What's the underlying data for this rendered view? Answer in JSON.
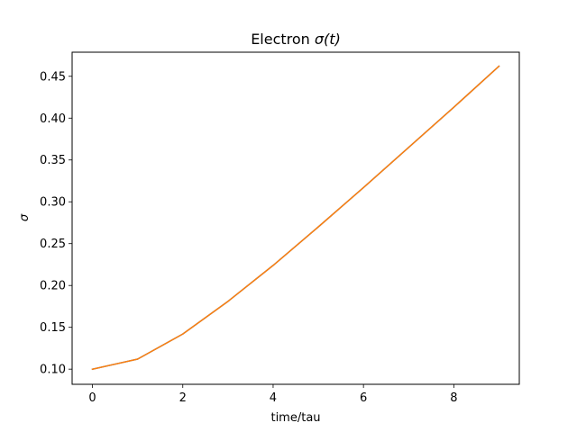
{
  "chart_data": {
    "type": "line",
    "title_prefix": "Electron ",
    "title_math": "σ(t)",
    "xlabel": "time/tau",
    "ylabel": "σ",
    "xlim": [
      -0.45,
      9.45
    ],
    "ylim": [
      0.0819,
      0.4788
    ],
    "xticks": [
      0,
      2,
      4,
      6,
      8
    ],
    "yticks": [
      0.1,
      0.15,
      0.2,
      0.25,
      0.3,
      0.35,
      0.4,
      0.45
    ],
    "xtick_labels": [
      "0",
      "2",
      "4",
      "6",
      "8"
    ],
    "ytick_labels": [
      "0.10",
      "0.15",
      "0.20",
      "0.25",
      "0.30",
      "0.35",
      "0.40",
      "0.45"
    ],
    "grid": false,
    "series": [
      {
        "color": "#1f77b4",
        "x": [
          0,
          1,
          2,
          3,
          4,
          5,
          6,
          7,
          8,
          9
        ],
        "y": [
          0.1,
          0.112,
          0.142,
          0.181,
          0.224,
          0.27,
          0.317,
          0.365,
          0.413,
          0.462
        ]
      },
      {
        "color": "#ff7f0e",
        "x": [
          0,
          1,
          2,
          3,
          4,
          5,
          6,
          7,
          8,
          9
        ],
        "y": [
          0.1,
          0.112,
          0.142,
          0.181,
          0.224,
          0.27,
          0.317,
          0.365,
          0.413,
          0.462
        ]
      }
    ]
  }
}
